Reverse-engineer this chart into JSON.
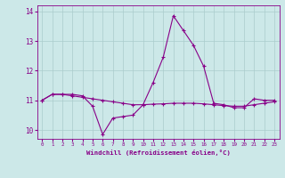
{
  "x": [
    0,
    1,
    2,
    3,
    4,
    5,
    6,
    7,
    8,
    9,
    10,
    11,
    12,
    13,
    14,
    15,
    16,
    17,
    18,
    19,
    20,
    21,
    22,
    23
  ],
  "windchill": [
    11.0,
    11.2,
    11.2,
    11.2,
    11.15,
    10.8,
    9.85,
    10.4,
    10.45,
    10.5,
    10.85,
    11.6,
    12.45,
    13.85,
    13.35,
    12.85,
    12.15,
    10.9,
    10.85,
    10.75,
    10.75,
    11.05,
    11.0,
    11.0
  ],
  "reference": [
    11.0,
    11.2,
    11.2,
    11.15,
    11.1,
    11.05,
    11.0,
    10.95,
    10.9,
    10.85,
    10.85,
    10.87,
    10.88,
    10.9,
    10.9,
    10.9,
    10.88,
    10.85,
    10.82,
    10.8,
    10.8,
    10.85,
    10.9,
    10.95
  ],
  "background_color": "#cce8e8",
  "grid_color": "#aacccc",
  "line_color": "#880088",
  "xlabel": "Windchill (Refroidissement éolien,°C)",
  "ylim": [
    9.7,
    14.2
  ],
  "xlim": [
    -0.5,
    23.5
  ],
  "yticks": [
    10,
    11,
    12,
    13,
    14
  ],
  "xticks": [
    0,
    1,
    2,
    3,
    4,
    5,
    6,
    7,
    8,
    9,
    10,
    11,
    12,
    13,
    14,
    15,
    16,
    17,
    18,
    19,
    20,
    21,
    22,
    23
  ]
}
